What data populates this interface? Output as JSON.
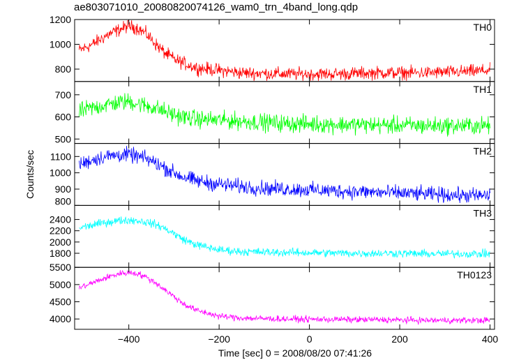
{
  "title": "ae803071010_20080820074126_wam0_trn_4band_long.qdp",
  "chart_data": {
    "type": "line",
    "title": "ae803071010_20080820074126_wam0_trn_4band_long.qdp",
    "xlabel": "Time [sec] 0 = 2008/08/20 07:41:26",
    "ylabel": "Counts/sec",
    "xlim": [
      -520,
      410
    ],
    "x_ticks": [
      -400,
      -200,
      0,
      200,
      400
    ],
    "x_tick_labels": [
      "−400",
      "−200",
      "0",
      "200",
      "400"
    ],
    "grid": false,
    "panels": [
      {
        "name": "TH0",
        "color": "#ff0000",
        "ylim": [
          700,
          1200
        ],
        "y_ticks": [
          800,
          1000,
          1200
        ],
        "x": [
          -510,
          -480,
          -450,
          -420,
          -400,
          -380,
          -360,
          -340,
          -320,
          -300,
          -280,
          -250,
          -200,
          -150,
          -100,
          -50,
          0,
          50,
          100,
          150,
          200,
          250,
          300,
          350,
          400
        ],
        "y": [
          950,
          1000,
          1070,
          1120,
          1150,
          1130,
          1080,
          1000,
          930,
          880,
          850,
          810,
          790,
          770,
          765,
          760,
          760,
          760,
          765,
          770,
          770,
          770,
          775,
          780,
          790
        ],
        "noise": 40
      },
      {
        "name": "TH1",
        "color": "#00ff00",
        "ylim": [
          480,
          760
        ],
        "y_ticks": [
          500,
          600,
          700
        ],
        "x": [
          -510,
          -480,
          -450,
          -420,
          -400,
          -380,
          -360,
          -340,
          -320,
          -300,
          -280,
          -250,
          -200,
          -150,
          -100,
          -50,
          0,
          50,
          100,
          150,
          200,
          250,
          300,
          350,
          400
        ],
        "y": [
          625,
          640,
          655,
          665,
          670,
          660,
          650,
          640,
          625,
          610,
          600,
          590,
          585,
          580,
          575,
          570,
          568,
          566,
          565,
          563,
          562,
          560,
          560,
          560,
          560
        ],
        "noise": 30
      },
      {
        "name": "TH2",
        "color": "#0000ff",
        "ylim": [
          800,
          1180
        ],
        "y_ticks": [
          800,
          900,
          1000,
          1100
        ],
        "x": [
          -510,
          -480,
          -450,
          -420,
          -400,
          -380,
          -360,
          -340,
          -320,
          -300,
          -280,
          -250,
          -200,
          -150,
          -100,
          -50,
          0,
          50,
          100,
          150,
          200,
          250,
          300,
          350,
          400
        ],
        "y": [
          1050,
          1080,
          1100,
          1110,
          1110,
          1100,
          1085,
          1060,
          1030,
          1000,
          975,
          950,
          930,
          915,
          905,
          900,
          895,
          890,
          885,
          880,
          875,
          870,
          865,
          860,
          860
        ],
        "noise": 35
      },
      {
        "name": "TH3",
        "color": "#00ffff",
        "ylim": [
          1550,
          2650
        ],
        "y_ticks": [
          1800,
          2000,
          2200,
          2400
        ],
        "x": [
          -510,
          -480,
          -450,
          -420,
          -400,
          -380,
          -360,
          -340,
          -320,
          -300,
          -280,
          -250,
          -200,
          -150,
          -100,
          -50,
          0,
          50,
          100,
          150,
          200,
          250,
          300,
          350,
          400
        ],
        "y": [
          2250,
          2300,
          2350,
          2380,
          2390,
          2380,
          2350,
          2310,
          2240,
          2150,
          2050,
          1950,
          1860,
          1830,
          1820,
          1815,
          1810,
          1805,
          1800,
          1800,
          1800,
          1790,
          1790,
          1790,
          1790
        ],
        "noise": 55
      },
      {
        "name": "TH0123",
        "color": "#ff00ff",
        "ylim": [
          3700,
          5500
        ],
        "y_ticks": [
          4000,
          4500,
          5000,
          5500
        ],
        "x": [
          -510,
          -480,
          -450,
          -420,
          -400,
          -380,
          -360,
          -340,
          -320,
          -300,
          -280,
          -250,
          -200,
          -150,
          -100,
          -50,
          0,
          50,
          100,
          150,
          200,
          250,
          300,
          350,
          400
        ],
        "y": [
          4900,
          5050,
          5200,
          5320,
          5350,
          5320,
          5200,
          5050,
          4850,
          4650,
          4450,
          4250,
          4080,
          4030,
          4010,
          4000,
          3990,
          3990,
          3980,
          3980,
          3970,
          3960,
          3960,
          3960,
          3960
        ],
        "noise": 70
      }
    ]
  }
}
